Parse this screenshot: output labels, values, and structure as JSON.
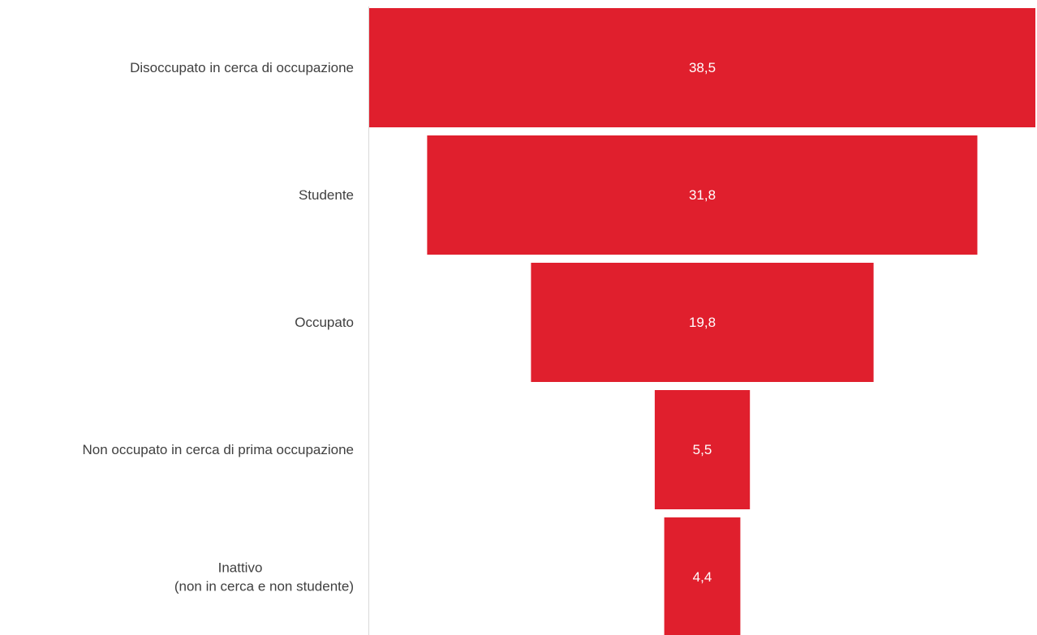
{
  "chart_data": {
    "type": "bar",
    "variant": "funnel",
    "categories": [
      [
        "Disoccupato in cerca di occupazione"
      ],
      [
        "Studente"
      ],
      [
        "Occupato"
      ],
      [
        "Non occupato in cerca di prima occupazione"
      ],
      [
        "Inattivo",
        "(non in cerca e non studente)"
      ]
    ],
    "values": [
      38.5,
      31.8,
      19.8,
      5.5,
      4.4
    ],
    "value_labels": [
      "38,5",
      "31,8",
      "19,8",
      "5,5",
      "4,4"
    ],
    "bar_color": "#e01f2d",
    "axis_color": "#d9d9d9",
    "label_color": "#404040"
  }
}
